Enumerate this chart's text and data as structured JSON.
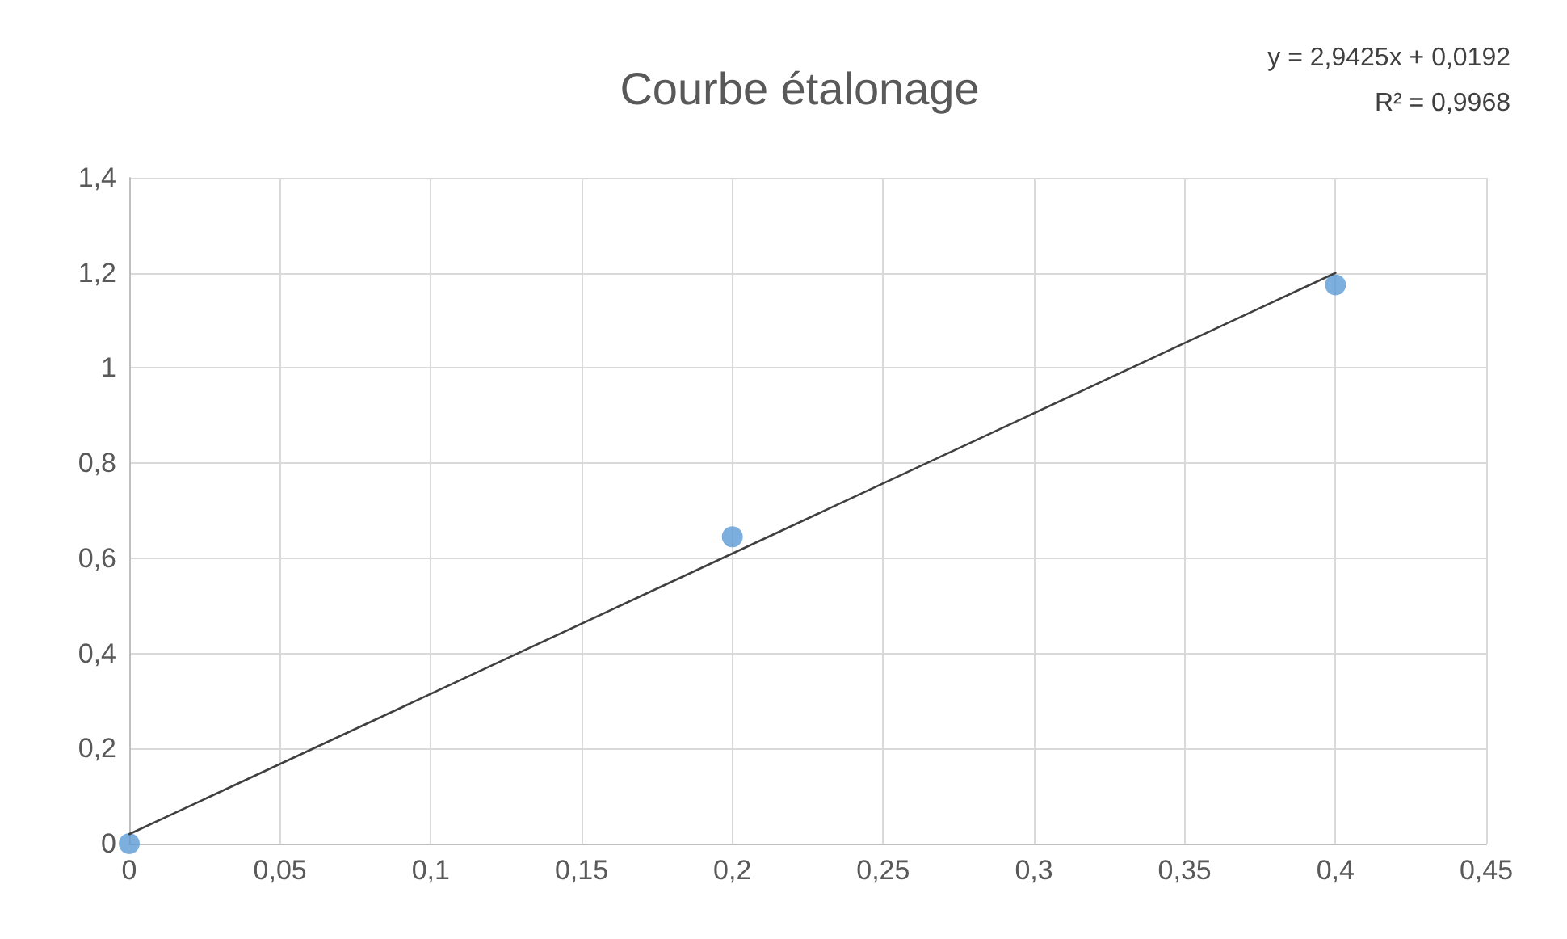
{
  "chart_data": {
    "type": "scatter",
    "title": "Courbe étalonage",
    "annotations": [
      "y = 2,9425x + 0,0192",
      "R² = 0,9968"
    ],
    "series": [
      {
        "color": "#5b9bd5",
        "marker": "circle",
        "x": [
          0,
          0.2,
          0.4
        ],
        "values": [
          0,
          0.645,
          1.175
        ]
      },
      {
        "type": "line",
        "color": "#404040",
        "marker": "none",
        "line_style": "solid",
        "x": [
          0,
          0.4
        ],
        "values": [
          0.02,
          1.2
        ]
      }
    ],
    "xlim": [
      0,
      0.45
    ],
    "xticks": [
      0,
      {
        "value": 0.05,
        "label": "0,05"
      },
      {
        "value": 0.1,
        "label": "0,1"
      },
      {
        "value": 0.15,
        "label": "0,15"
      },
      {
        "value": 0.2,
        "label": "0,2"
      },
      {
        "value": 0.25,
        "label": "0,25"
      },
      {
        "value": 0.3,
        "label": "0,3"
      },
      {
        "value": 0.35,
        "label": "0,35"
      },
      {
        "value": 0.4,
        "label": "0,4"
      },
      {
        "value": 0.45,
        "label": "0,45"
      }
    ],
    "ylim": [
      0,
      1.4
    ],
    "yticks": [
      0,
      {
        "value": 0.2,
        "label": "0,2"
      },
      {
        "value": 0.4,
        "label": "0,4"
      },
      {
        "value": 0.6,
        "label": "0,6"
      },
      {
        "value": 0.8,
        "label": "0,8"
      },
      1,
      {
        "value": 1.2,
        "label": "1,2"
      },
      {
        "value": 1.4,
        "label": "1,4"
      }
    ],
    "grid": true
  }
}
